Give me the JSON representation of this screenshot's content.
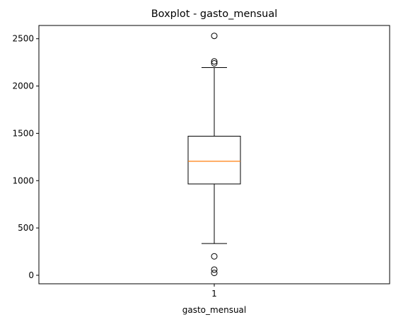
{
  "chart_data": {
    "type": "boxplot",
    "title": "Boxplot - gasto_mensual",
    "xlabel": "gasto_mensual",
    "ylabel": "",
    "categories": [
      "1"
    ],
    "series": [
      {
        "whisker_low": 335,
        "q1": 965,
        "median": 1205,
        "q3": 1470,
        "whisker_high": 2195,
        "outliers": [
          25,
          60,
          200,
          2240,
          2260,
          2530
        ]
      }
    ],
    "yticks": [
      0,
      500,
      1000,
      1500,
      2000,
      2500
    ],
    "ylim": [
      -90,
      2640
    ],
    "grid": false,
    "legend": "none",
    "colors": {
      "box": "#000000",
      "median": "#ff7f0e",
      "outlier_edge": "#000000",
      "background": "#ffffff"
    }
  }
}
